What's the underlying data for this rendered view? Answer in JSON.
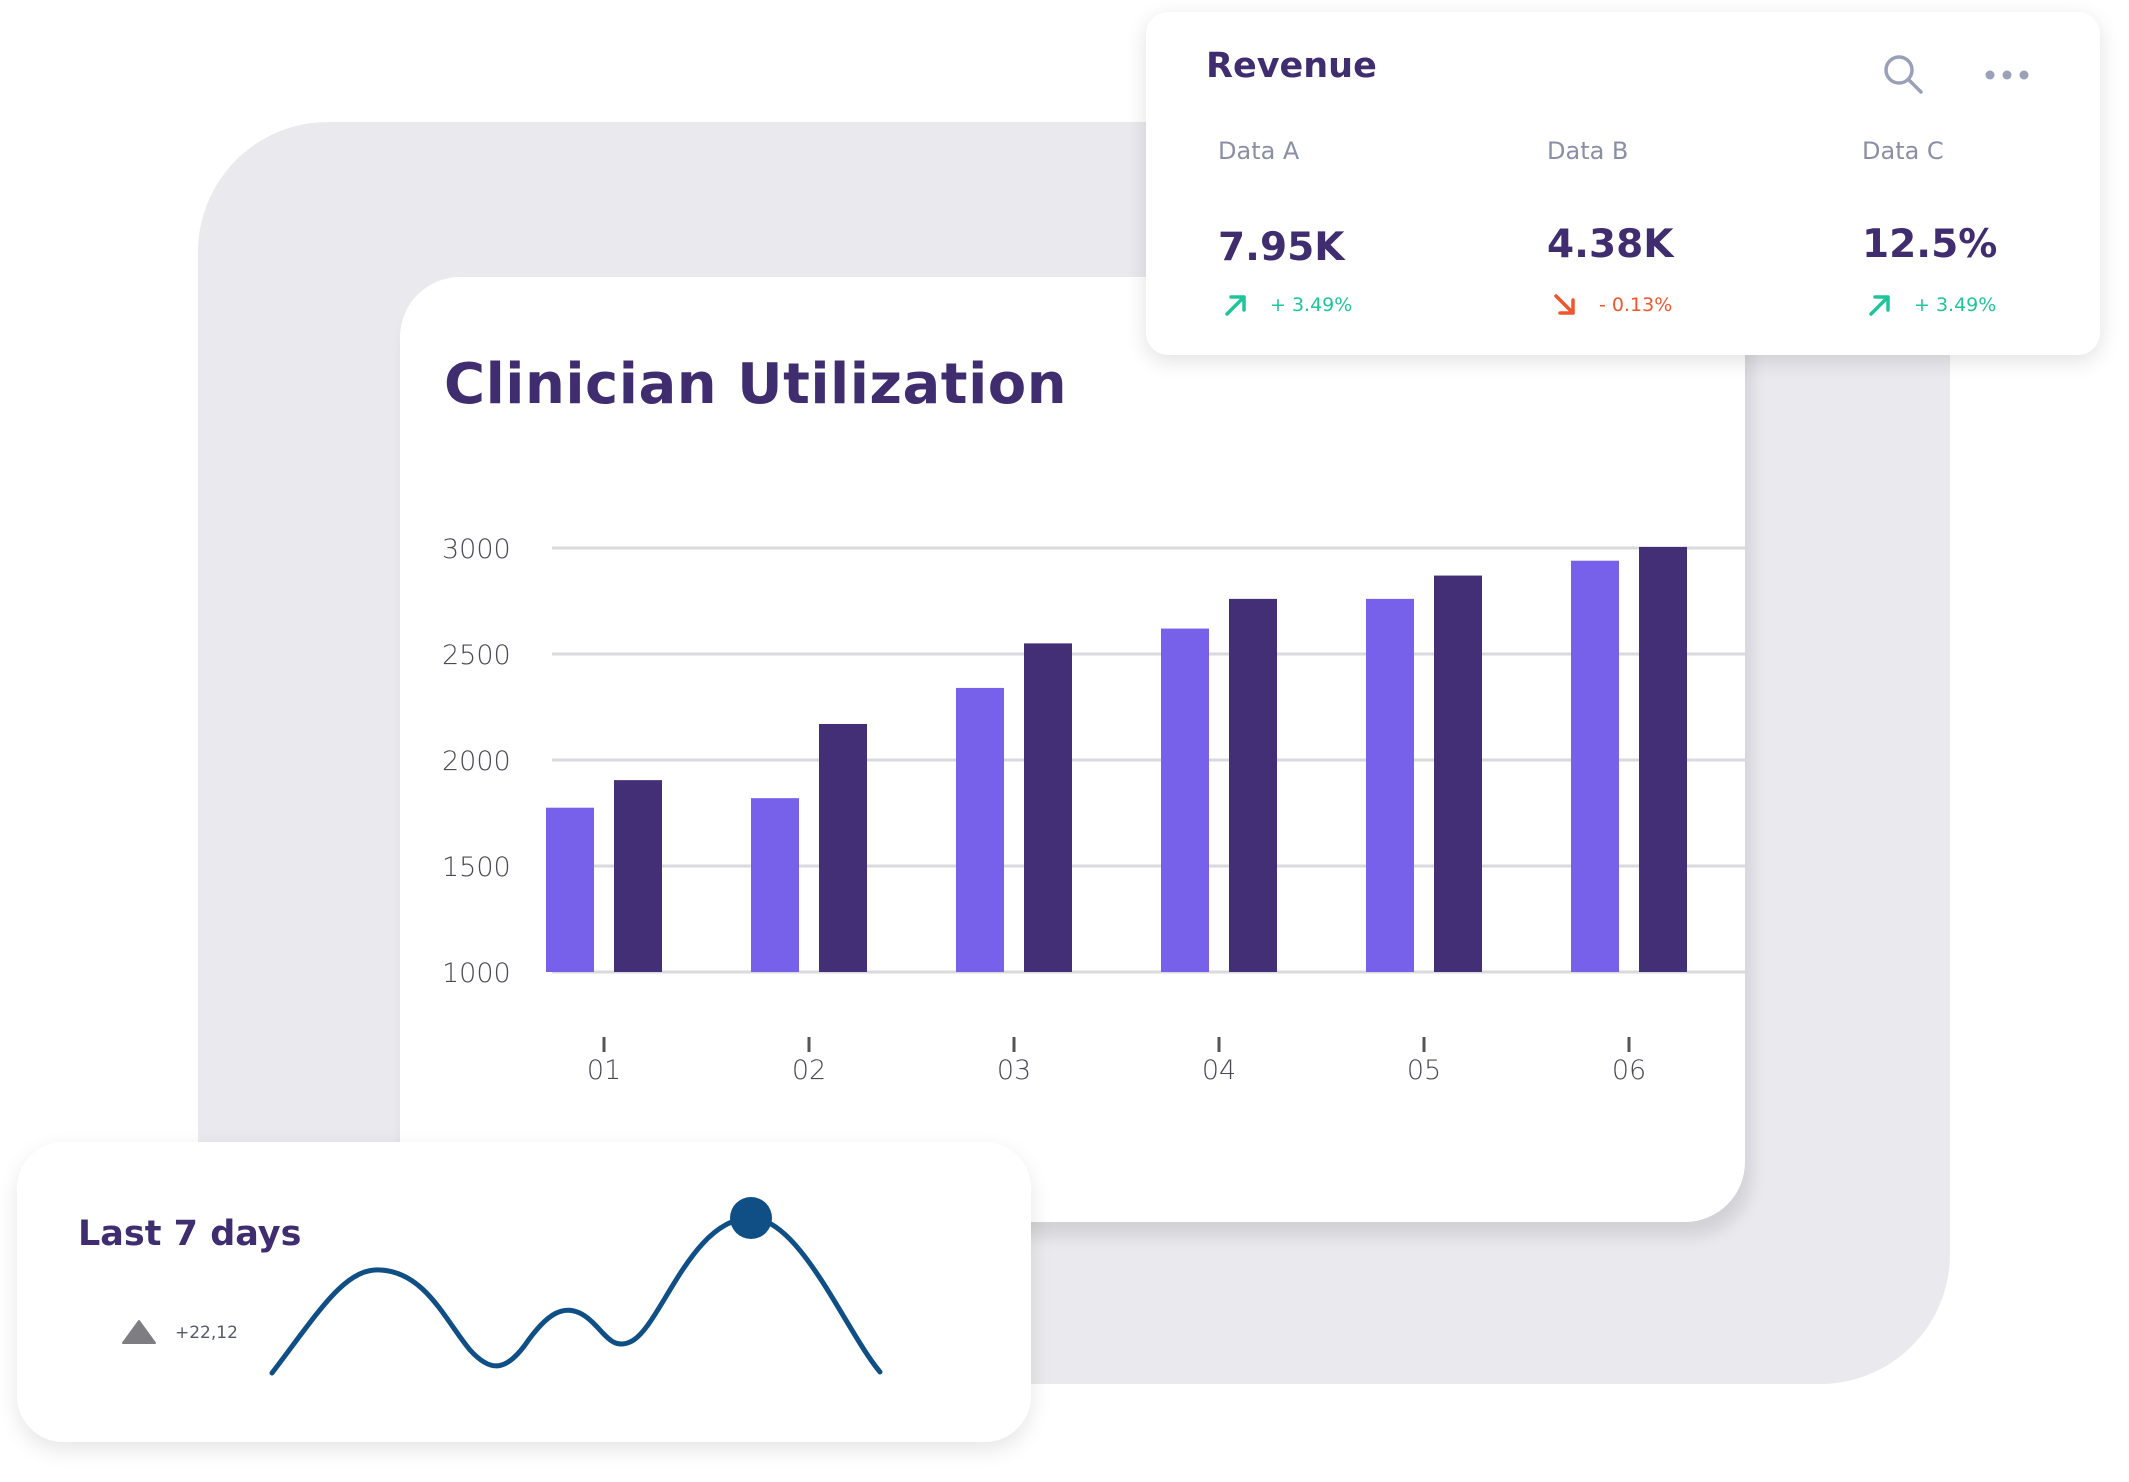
{
  "colors": {
    "series_a": "#7761ea",
    "series_b": "#432f75",
    "title": "#3f2d70",
    "grid": "#d9d9de",
    "up": "#1fc59a",
    "down": "#f0562e",
    "sparkline": "#0f4f85"
  },
  "chart_data": {
    "type": "bar",
    "title": "Clinician Utilization",
    "categories": [
      "01",
      "02",
      "03",
      "04",
      "05",
      "06"
    ],
    "series": [
      {
        "values": [
          1775,
          1820,
          2340,
          2620,
          2760,
          2940
        ]
      },
      {
        "values": [
          1905,
          2170,
          2550,
          2760,
          2870,
          3005
        ]
      }
    ],
    "yticks": [
      "3000",
      "2500",
      "2000",
      "1500",
      "1000"
    ],
    "ylim": [
      1000,
      3000
    ],
    "grid": true,
    "xlabel": "",
    "ylabel": ""
  },
  "revenue": {
    "title": "Revenue",
    "search_icon": "search-icon",
    "more_icon": "more-horizontal-icon",
    "metrics": [
      {
        "label": "Data A",
        "value": "7.95K",
        "change": "+ 3.49%",
        "direction": "up"
      },
      {
        "label": "Data B",
        "value": "4.38K",
        "change": "- 0.13%",
        "direction": "down"
      },
      {
        "label": "Data C",
        "value": "12.5%",
        "change": "+ 3.49%",
        "direction": "up"
      }
    ]
  },
  "week": {
    "title": "Last 7 days",
    "delta": "+22,12",
    "indicator_icon": "triangle-up-icon"
  }
}
